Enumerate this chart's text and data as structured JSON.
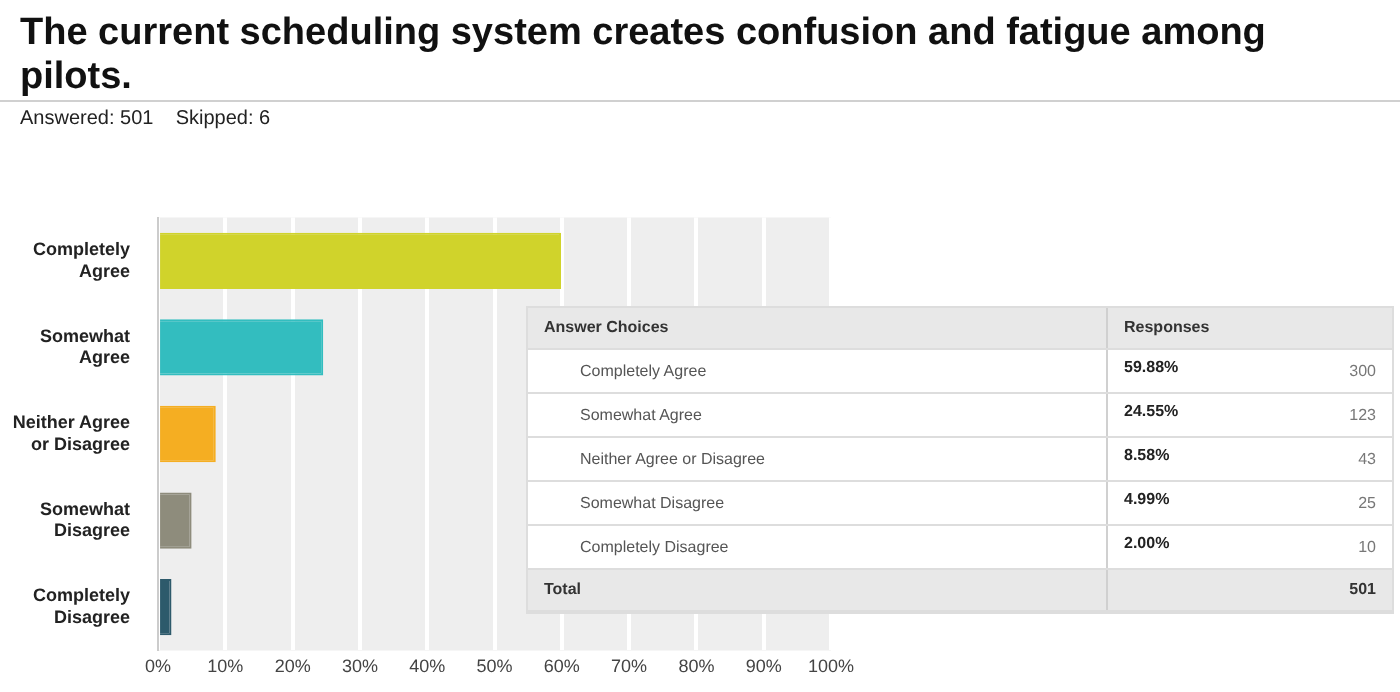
{
  "chart_data": {
    "type": "bar",
    "orientation": "horizontal",
    "title": "The current scheduling system creates confusion and fatigue among pilots.",
    "subtitle": "Answered: 501    Skipped: 6",
    "categories": [
      "Completely Agree",
      "Somewhat Agree",
      "Neither Agree or Disagree",
      "Somewhat Disagree",
      "Completely Disagree"
    ],
    "values": [
      59.88,
      24.55,
      8.58,
      4.99,
      2.0
    ],
    "colors": [
      "#d0d32b",
      "#33bdbf",
      "#f5ae22",
      "#8e8c7c",
      "#2d5a6b"
    ],
    "xlim": [
      0,
      100
    ],
    "xticks": [
      {
        "value": 0,
        "label": "0%"
      },
      {
        "value": 10,
        "label": "10%"
      },
      {
        "value": 20,
        "label": "20%"
      },
      {
        "value": 30,
        "label": "30%"
      },
      {
        "value": 40,
        "label": "40%"
      },
      {
        "value": 50,
        "label": "50%"
      },
      {
        "value": 60,
        "label": "60%"
      },
      {
        "value": 70,
        "label": "70%"
      },
      {
        "value": 80,
        "label": "80%"
      },
      {
        "value": 90,
        "label": "90%"
      },
      {
        "value": 100,
        "label": "100%"
      }
    ],
    "grid": "x",
    "legend": false,
    "annotations": [
      "Answer Choices",
      "Responses",
      "59.88%",
      "300",
      "24.55%",
      "123",
      "8.58%",
      "43",
      "4.99%",
      "25",
      "2.00%",
      "10",
      "Total",
      "501"
    ]
  }
}
